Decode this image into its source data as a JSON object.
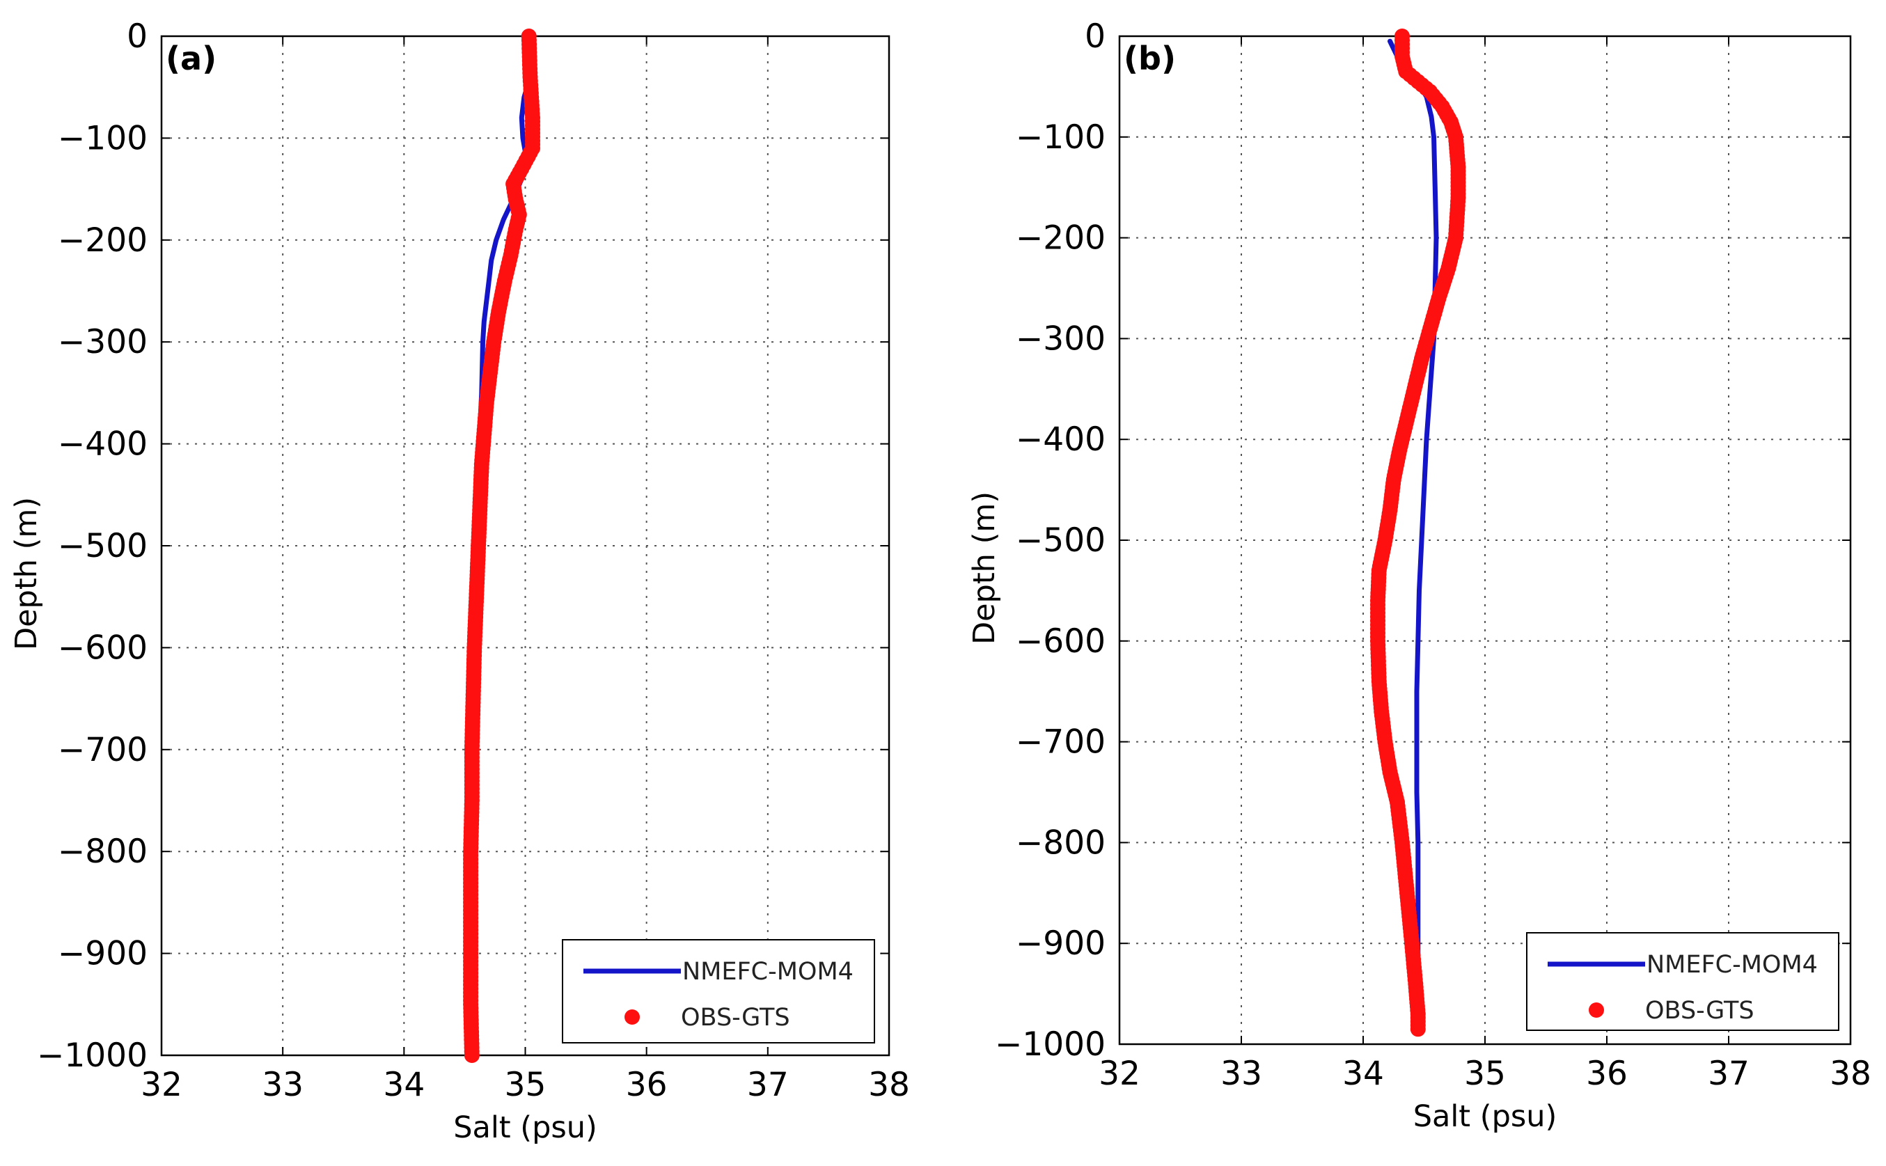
{
  "chart_data": [
    {
      "type": "line",
      "panel_label": "(a)",
      "xlabel": "Salt (psu)",
      "ylabel": "Depth (m)",
      "xlim": [
        32,
        38
      ],
      "ylim": [
        -1000,
        0
      ],
      "xticks": [
        32,
        33,
        34,
        35,
        36,
        37,
        38
      ],
      "yticks": [
        0,
        -100,
        -200,
        -300,
        -400,
        -500,
        -600,
        -700,
        -800,
        -900,
        -1000
      ],
      "xtick_labels": [
        "32",
        "33",
        "34",
        "35",
        "36",
        "37",
        "38"
      ],
      "ytick_labels": [
        "0",
        "−100",
        "−200",
        "−300",
        "−400",
        "−500",
        "−600",
        "−700",
        "−800",
        "−900",
        "−1000"
      ],
      "grid": true,
      "legend_position": "bottom-right",
      "series": [
        {
          "name": "NMEFC-MOM4",
          "style": "line",
          "color": "#1414c8",
          "points": [
            [
              35.05,
              0
            ],
            [
              35.05,
              -20
            ],
            [
              35.04,
              -40
            ],
            [
              34.99,
              -60
            ],
            [
              34.97,
              -80
            ],
            [
              34.98,
              -100
            ],
            [
              35.01,
              -120
            ],
            [
              34.97,
              -140
            ],
            [
              34.9,
              -160
            ],
            [
              34.82,
              -180
            ],
            [
              34.76,
              -200
            ],
            [
              34.72,
              -220
            ],
            [
              34.7,
              -240
            ],
            [
              34.68,
              -260
            ],
            [
              34.66,
              -280
            ],
            [
              34.65,
              -300
            ],
            [
              34.64,
              -350
            ],
            [
              34.62,
              -400
            ],
            [
              34.6,
              -450
            ],
            [
              34.6,
              -500
            ],
            [
              34.59,
              -550
            ],
            [
              34.58,
              -600
            ],
            [
              34.58,
              -650
            ],
            [
              34.58,
              -700
            ],
            [
              34.58,
              -750
            ],
            [
              34.58,
              -800
            ],
            [
              34.58,
              -850
            ],
            [
              34.58,
              -900
            ],
            [
              34.58,
              -950
            ],
            [
              34.58,
              -1000
            ]
          ]
        },
        {
          "name": "OBS-GTS",
          "style": "markers",
          "color": "#ff1010",
          "points": [
            [
              35.03,
              0
            ],
            [
              35.04,
              -40
            ],
            [
              35.06,
              -80
            ],
            [
              35.06,
              -110
            ],
            [
              34.97,
              -130
            ],
            [
              34.9,
              -145
            ],
            [
              34.92,
              -160
            ],
            [
              34.95,
              -175
            ],
            [
              34.92,
              -190
            ],
            [
              34.88,
              -215
            ],
            [
              34.83,
              -240
            ],
            [
              34.78,
              -270
            ],
            [
              34.74,
              -300
            ],
            [
              34.71,
              -330
            ],
            [
              34.68,
              -360
            ],
            [
              34.66,
              -390
            ],
            [
              34.64,
              -420
            ],
            [
              34.63,
              -450
            ],
            [
              34.62,
              -480
            ],
            [
              34.61,
              -510
            ],
            [
              34.6,
              -540
            ],
            [
              34.59,
              -570
            ],
            [
              34.58,
              -600
            ],
            [
              34.57,
              -650
            ],
            [
              34.56,
              -700
            ],
            [
              34.56,
              -750
            ],
            [
              34.55,
              -800
            ],
            [
              34.55,
              -850
            ],
            [
              34.55,
              -900
            ],
            [
              34.55,
              -950
            ],
            [
              34.56,
              -1000
            ]
          ]
        }
      ]
    },
    {
      "type": "line",
      "panel_label": "(b)",
      "xlabel": "Salt (psu)",
      "ylabel": "Depth (m)",
      "xlim": [
        32,
        38
      ],
      "ylim": [
        -1000,
        0
      ],
      "xticks": [
        32,
        33,
        34,
        35,
        36,
        37,
        38
      ],
      "yticks": [
        0,
        -100,
        -200,
        -300,
        -400,
        -500,
        -600,
        -700,
        -800,
        -900,
        -1000
      ],
      "xtick_labels": [
        "32",
        "33",
        "34",
        "35",
        "36",
        "37",
        "38"
      ],
      "ytick_labels": [
        "0",
        "−100",
        "−200",
        "−300",
        "−400",
        "−500",
        "−600",
        "−700",
        "−800",
        "−900",
        "−1000"
      ],
      "grid": true,
      "legend_position": "bottom-right",
      "series": [
        {
          "name": "NMEFC-MOM4",
          "style": "line",
          "color": "#1414c8",
          "points": [
            [
              34.22,
              -5
            ],
            [
              34.28,
              -20
            ],
            [
              34.42,
              -40
            ],
            [
              34.52,
              -60
            ],
            [
              34.56,
              -80
            ],
            [
              34.58,
              -100
            ],
            [
              34.59,
              -150
            ],
            [
              34.6,
              -200
            ],
            [
              34.59,
              -250
            ],
            [
              34.58,
              -300
            ],
            [
              34.55,
              -350
            ],
            [
              34.52,
              -400
            ],
            [
              34.5,
              -450
            ],
            [
              34.48,
              -500
            ],
            [
              34.46,
              -550
            ],
            [
              34.45,
              -600
            ],
            [
              34.44,
              -650
            ],
            [
              34.44,
              -700
            ],
            [
              34.44,
              -750
            ],
            [
              34.45,
              -800
            ],
            [
              34.45,
              -850
            ],
            [
              34.45,
              -900
            ],
            [
              34.45,
              -950
            ],
            [
              34.45,
              -985
            ]
          ]
        },
        {
          "name": "OBS-GTS",
          "style": "markers",
          "color": "#ff1010",
          "points": [
            [
              34.32,
              0
            ],
            [
              34.32,
              -20
            ],
            [
              34.35,
              -35
            ],
            [
              34.45,
              -45
            ],
            [
              34.55,
              -55
            ],
            [
              34.65,
              -70
            ],
            [
              34.72,
              -85
            ],
            [
              34.76,
              -100
            ],
            [
              34.78,
              -130
            ],
            [
              34.78,
              -160
            ],
            [
              34.76,
              -200
            ],
            [
              34.7,
              -230
            ],
            [
              34.62,
              -260
            ],
            [
              34.55,
              -290
            ],
            [
              34.48,
              -320
            ],
            [
              34.42,
              -350
            ],
            [
              34.36,
              -380
            ],
            [
              34.3,
              -410
            ],
            [
              34.25,
              -440
            ],
            [
              34.22,
              -470
            ],
            [
              34.18,
              -500
            ],
            [
              34.13,
              -530
            ],
            [
              34.12,
              -560
            ],
            [
              34.12,
              -600
            ],
            [
              34.13,
              -640
            ],
            [
              34.15,
              -670
            ],
            [
              34.18,
              -700
            ],
            [
              34.22,
              -730
            ],
            [
              34.28,
              -760
            ],
            [
              34.32,
              -800
            ],
            [
              34.36,
              -850
            ],
            [
              34.4,
              -900
            ],
            [
              34.43,
              -940
            ],
            [
              34.45,
              -970
            ],
            [
              34.45,
              -985
            ]
          ]
        }
      ]
    }
  ]
}
